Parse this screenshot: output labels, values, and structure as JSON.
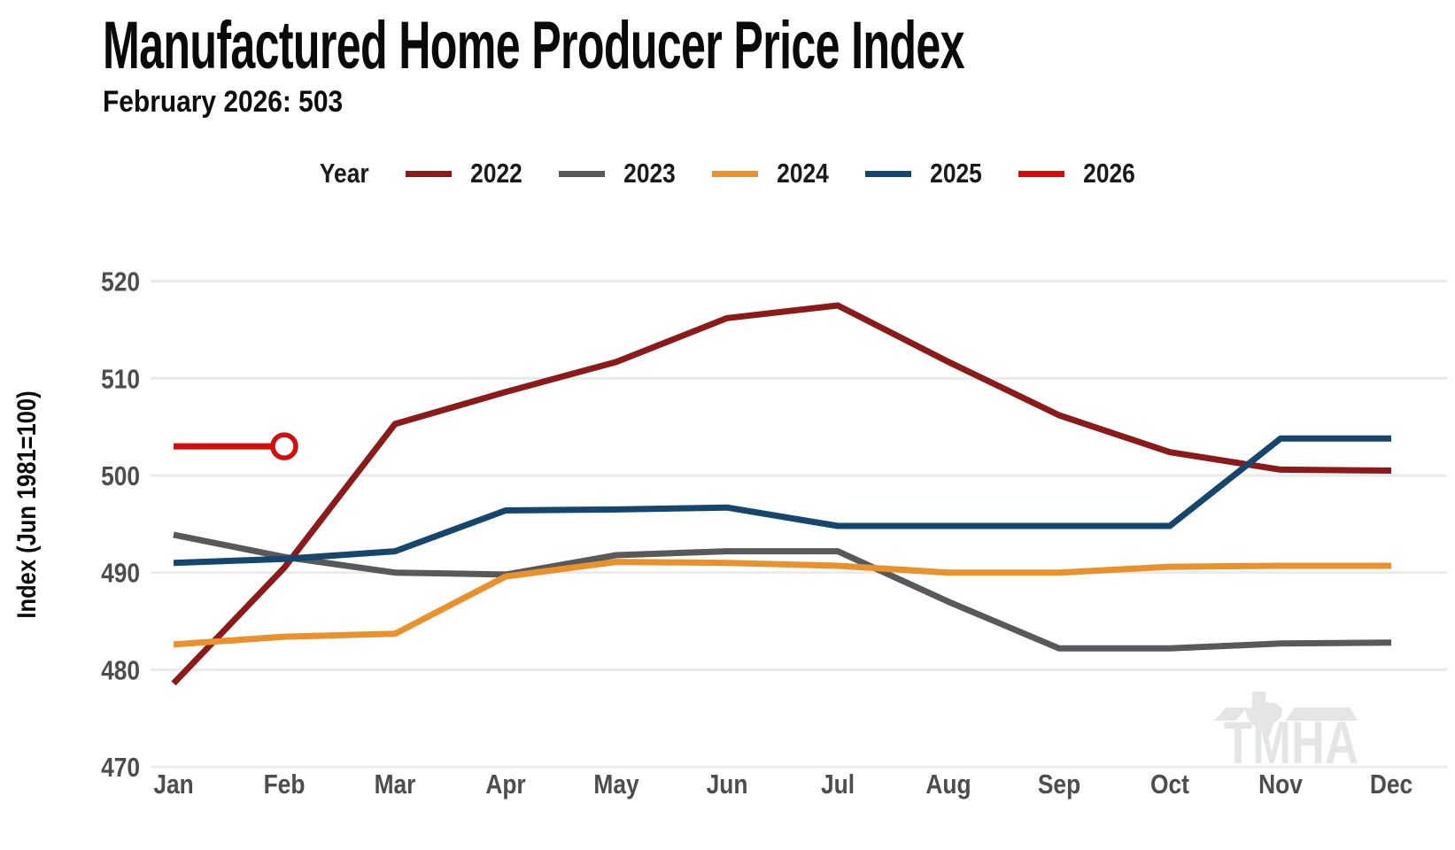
{
  "title": "Manufactured Home Producer Price Index",
  "subtitle": "February 2026: 503",
  "legend_title": "Year",
  "watermark": "TMHA",
  "chart_data": {
    "type": "line",
    "title": "Manufactured Home Producer Price Index",
    "subtitle": "February 2026: 503",
    "ylabel": "Index (Jun 1981=100)",
    "xlabel": "",
    "categories": [
      "Jan",
      "Feb",
      "Mar",
      "Apr",
      "May",
      "Jun",
      "Jul",
      "Aug",
      "Sep",
      "Oct",
      "Nov",
      "Dec"
    ],
    "yticks": [
      470,
      480,
      490,
      500,
      510,
      520
    ],
    "ylim": [
      466,
      524
    ],
    "grid": "horizontal",
    "legend_position": "top",
    "colors": {
      "grid": "#EAEAEA",
      "tick_label": "#4D4D4D",
      "axis_title": "#0A0A0A",
      "title": "#0A0A0A",
      "watermark": "#E4E5E7",
      "background": "#FFFFFF"
    },
    "series": [
      {
        "name": "2022",
        "color": "#8B1A1A",
        "values": [
          478.6,
          490.5,
          505.3,
          508.6,
          511.7,
          516.2,
          517.5,
          511.7,
          506.2,
          502.4,
          500.6,
          500.5
        ]
      },
      {
        "name": "2023",
        "color": "#58595B",
        "values": [
          493.9,
          491.6,
          490.0,
          489.8,
          491.8,
          492.2,
          492.2,
          487.0,
          482.2,
          482.2,
          482.7,
          482.8
        ]
      },
      {
        "name": "2024",
        "color": "#E8912D",
        "values": [
          482.6,
          483.4,
          483.7,
          489.6,
          491.1,
          491.0,
          490.7,
          490.0,
          490.0,
          490.6,
          490.7,
          490.7
        ]
      },
      {
        "name": "2025",
        "color": "#16466E",
        "values": [
          491.0,
          491.4,
          492.2,
          496.4,
          496.5,
          496.7,
          494.8,
          494.8,
          494.8,
          494.8,
          503.8,
          503.8
        ]
      },
      {
        "name": "2026",
        "color": "#D10E0E",
        "marker_end": "open-circle",
        "values": [
          503,
          503
        ]
      }
    ]
  }
}
